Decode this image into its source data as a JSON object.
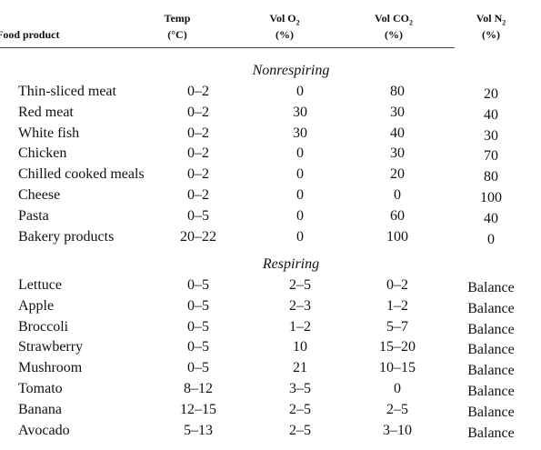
{
  "header": {
    "columns": [
      {
        "label": "Food product"
      },
      {
        "label": "Temp",
        "unit": "(°C)"
      },
      {
        "label": "Vol O",
        "sub": "2",
        "unit": "(%)"
      },
      {
        "label": "Vol CO",
        "sub": "2",
        "unit": "(%)"
      },
      {
        "label": "Vol N",
        "sub": "2",
        "unit": "(%)"
      }
    ]
  },
  "sections": [
    {
      "title": "Nonrespiring",
      "rows": [
        [
          "Thin-sliced meat",
          "0–2",
          "0",
          "80",
          "20"
        ],
        [
          "Red meat",
          "0–2",
          "30",
          "30",
          "40"
        ],
        [
          "White fish",
          "0–2",
          "30",
          "40",
          "30"
        ],
        [
          "Chicken",
          "0–2",
          "0",
          "30",
          "70"
        ],
        [
          "Chilled cooked meals",
          "0–2",
          "0",
          "20",
          "80"
        ],
        [
          "Cheese",
          "0–2",
          "0",
          "0",
          "100"
        ],
        [
          "Pasta",
          "0–5",
          "0",
          "60",
          "40"
        ],
        [
          "Bakery products",
          "20–22",
          "0",
          "100",
          "0"
        ]
      ]
    },
    {
      "title": "Respiring",
      "rows": [
        [
          "Lettuce",
          "0–5",
          "2–5",
          "0–2",
          "Balance"
        ],
        [
          "Apple",
          "0–5",
          "2–3",
          "1–2",
          "Balance"
        ],
        [
          "Broccoli",
          "0–5",
          "1–2",
          "5–7",
          "Balance"
        ],
        [
          "Strawberry",
          "0–5",
          "10",
          "15–20",
          "Balance"
        ],
        [
          "Mushroom",
          "0–5",
          "21",
          "10–15",
          "Balance"
        ],
        [
          "Tomato",
          "8–12",
          "3–5",
          "0",
          "Balance"
        ],
        [
          "Banana",
          "12–15",
          "2–5",
          "2–5",
          "Balance"
        ],
        [
          "Avocado",
          "5–13",
          "2–5",
          "3–10",
          "Balance"
        ]
      ]
    }
  ]
}
